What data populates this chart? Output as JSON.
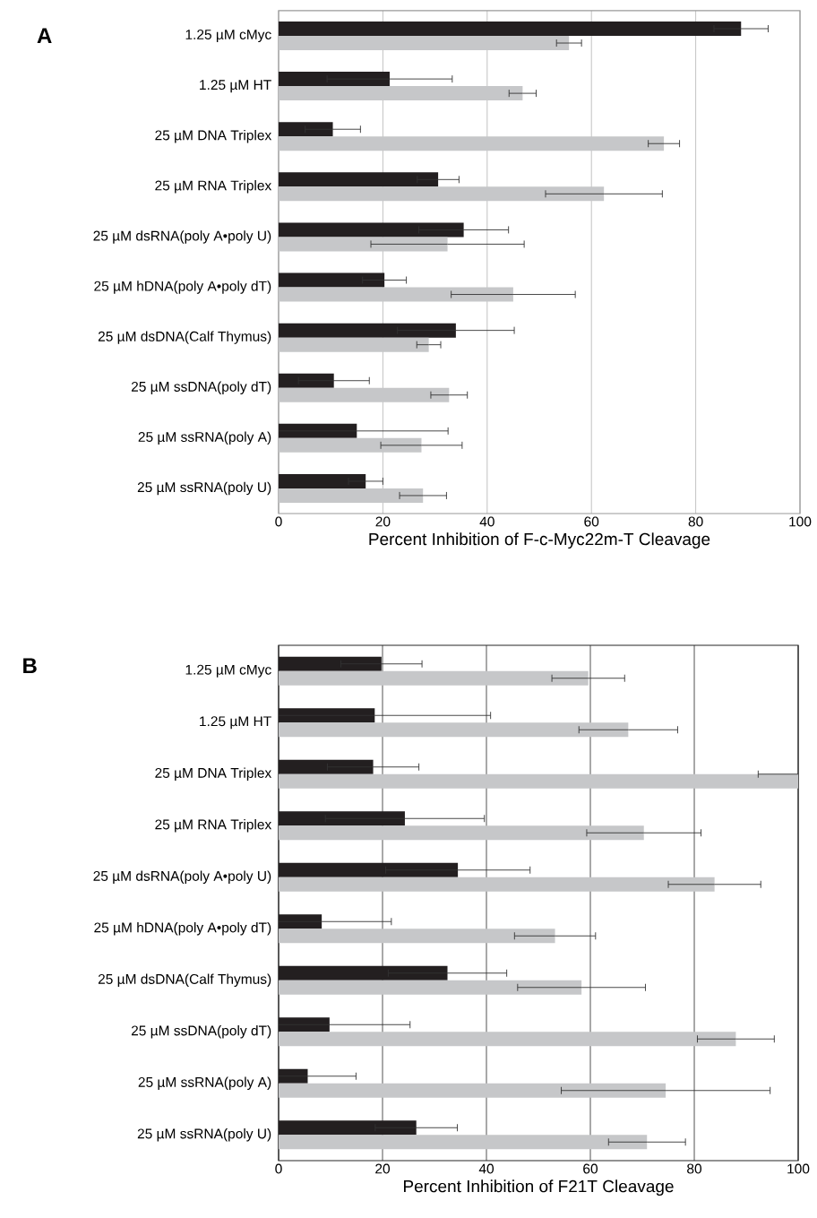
{
  "chart_data": [
    {
      "type": "bar",
      "orientation": "horizontal",
      "title": "A",
      "xlabel": "Percent Inhibition of F-c-Myc22m-T Cleavage",
      "categories": [
        "1.25 µM cMyc",
        "1.25 µM HT",
        "25 µM DNA Triplex",
        "25 µM RNA Triplex",
        "25 µM  dsRNA(poly A•poly U)",
        "25 µM hDNA(poly A•poly dT)",
        "25 µM dsDNA(Calf Thymus)",
        "25 µM ssDNA(poly dT)",
        "25 µM ssRNA(poly A)",
        "25 µM ssRNA(poly U)"
      ],
      "series": [
        {
          "color": "#231f20",
          "values": [
            88.7,
            21.3,
            10.4,
            30.6,
            35.5,
            20.3,
            34.0,
            10.6,
            15.0,
            16.7
          ],
          "errors": [
            5.2,
            12,
            5.3,
            4,
            8.6,
            4.2,
            11.2,
            6.8,
            17.5,
            3.3
          ]
        },
        {
          "color": "#c6c7c9",
          "values": [
            55.7,
            46.8,
            73.9,
            62.4,
            32.4,
            45.0,
            28.8,
            32.7,
            27.4,
            27.7
          ],
          "errors": [
            2.4,
            2.6,
            3,
            11.2,
            14.7,
            11.9,
            2.3,
            3.5,
            7.8,
            4.5
          ]
        }
      ],
      "xlim": [
        0,
        100
      ],
      "xticks": [
        0,
        20,
        40,
        60,
        80,
        100
      ],
      "grid": "x"
    },
    {
      "type": "bar",
      "orientation": "horizontal",
      "title": "B",
      "xlabel": "Percent Inhibition of F21T Cleavage",
      "categories": [
        "1.25 µM cMyc",
        "1.25 µM HT",
        "25 µM DNA Triplex",
        "25 µM RNA Triplex",
        "25 µM  dsRNA(poly A•poly U)",
        "25 µM hDNA(poly A•poly dT)",
        "25 µM dsDNA(Calf Thymus)",
        "25 µM ssDNA(poly dT)",
        "25 µM ssRNA(poly A)",
        "25 µM ssRNA(poly U)"
      ],
      "series": [
        {
          "color": "#231f20",
          "values": [
            19.8,
            18.5,
            18.2,
            24.3,
            34.5,
            8.3,
            32.5,
            9.8,
            5.6,
            26.5
          ],
          "errors": [
            7.8,
            22.3,
            8.8,
            15.3,
            13.9,
            13.4,
            11.4,
            15.5,
            9.3,
            7.9
          ]
        },
        {
          "color": "#c6c7c9",
          "values": [
            59.6,
            67.3,
            100,
            70.3,
            83.9,
            53.2,
            58.3,
            88.0,
            74.5,
            70.9
          ],
          "errors": [
            7,
            9.5,
            [
              92.3,
              100
            ],
            11,
            8.9,
            7.8,
            12.3,
            7.4,
            20.1,
            7.4
          ]
        }
      ],
      "xlim": [
        0,
        100
      ],
      "xticks": [
        0,
        20,
        40,
        60,
        80,
        100
      ],
      "grid": "x"
    }
  ]
}
